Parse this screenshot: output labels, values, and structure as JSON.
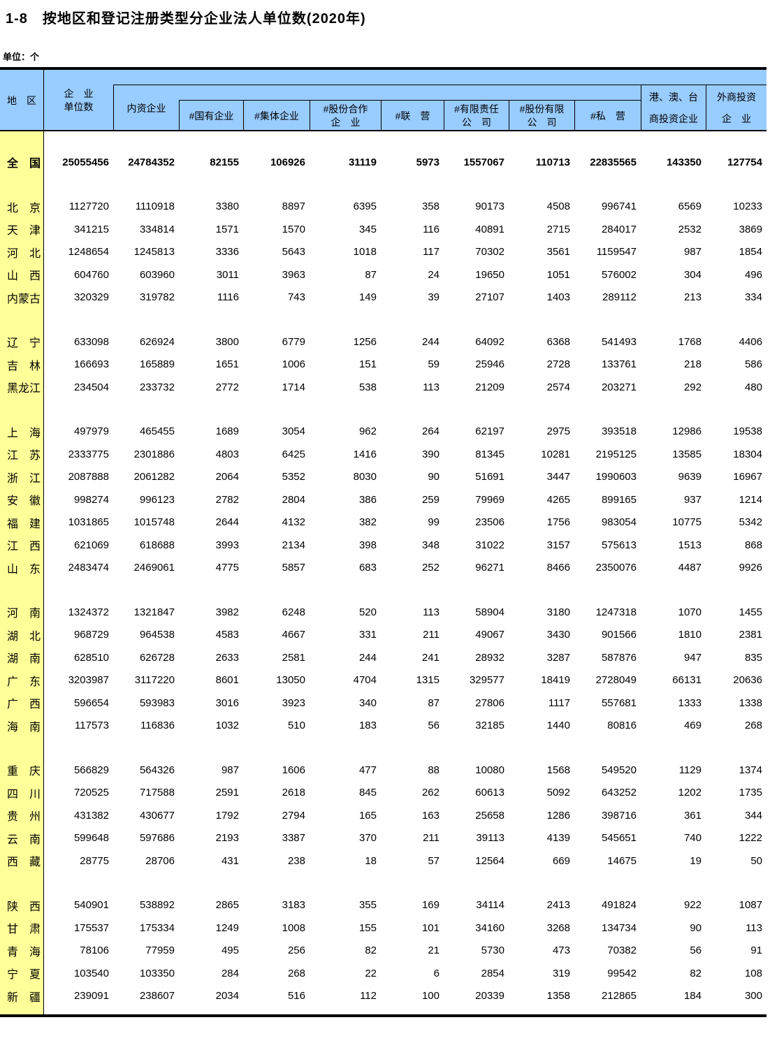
{
  "title": "1-8　按地区和登记注册类型分企业法人单位数(2020年)",
  "unit_note": "单位：个",
  "colors": {
    "header_bg": "#99CCFF",
    "region_col_bg": "#FFFF99",
    "border": "#000000"
  },
  "table": {
    "header": {
      "region": "地　区",
      "total_lines": [
        "企　业",
        "单位数"
      ],
      "domestic": "内资企业",
      "sub_columns": [
        {
          "lines": [
            "#国有企业"
          ]
        },
        {
          "lines": [
            "#集体企业"
          ]
        },
        {
          "lines": [
            "#股份合作",
            "企　业"
          ]
        },
        {
          "lines": [
            "#联　营"
          ]
        },
        {
          "lines": [
            "#有限责任",
            "公　司"
          ]
        },
        {
          "lines": [
            "#股份有限",
            "公　司"
          ]
        },
        {
          "lines": [
            "#私　营"
          ]
        }
      ],
      "hmt_lines": [
        "港、澳、台",
        "商投资企业"
      ],
      "foreign_lines": [
        "外商投资",
        "企　业"
      ]
    },
    "groups": [
      [
        {
          "region": "全　国",
          "bold": true,
          "values": [
            25055456,
            24784352,
            82155,
            106926,
            31119,
            5973,
            1557067,
            110713,
            22835565,
            143350,
            127754
          ]
        }
      ],
      [
        {
          "region": "北　京",
          "values": [
            1127720,
            1110918,
            3380,
            8897,
            6395,
            358,
            90173,
            4508,
            996741,
            6569,
            10233
          ]
        },
        {
          "region": "天　津",
          "values": [
            341215,
            334814,
            1571,
            1570,
            345,
            116,
            40891,
            2715,
            284017,
            2532,
            3869
          ]
        },
        {
          "region": "河　北",
          "values": [
            1248654,
            1245813,
            3336,
            5643,
            1018,
            117,
            70302,
            3561,
            1159547,
            987,
            1854
          ]
        },
        {
          "region": "山　西",
          "values": [
            604760,
            603960,
            3011,
            3963,
            87,
            24,
            19650,
            1051,
            576002,
            304,
            496
          ]
        },
        {
          "region": "内蒙古",
          "values": [
            320329,
            319782,
            1116,
            743,
            149,
            39,
            27107,
            1403,
            289112,
            213,
            334
          ]
        }
      ],
      [
        {
          "region": "辽　宁",
          "values": [
            633098,
            626924,
            3800,
            6779,
            1256,
            244,
            64092,
            6368,
            541493,
            1768,
            4406
          ]
        },
        {
          "region": "吉　林",
          "values": [
            166693,
            165889,
            1651,
            1006,
            151,
            59,
            25946,
            2728,
            133761,
            218,
            586
          ]
        },
        {
          "region": "黑龙江",
          "values": [
            234504,
            233732,
            2772,
            1714,
            538,
            113,
            21209,
            2574,
            203271,
            292,
            480
          ]
        }
      ],
      [
        {
          "region": "上　海",
          "values": [
            497979,
            465455,
            1689,
            3054,
            962,
            264,
            62197,
            2975,
            393518,
            12986,
            19538
          ]
        },
        {
          "region": "江　苏",
          "values": [
            2333775,
            2301886,
            4803,
            6425,
            1416,
            390,
            81345,
            10281,
            2195125,
            13585,
            18304
          ]
        },
        {
          "region": "浙　江",
          "values": [
            2087888,
            2061282,
            2064,
            5352,
            8030,
            90,
            51691,
            3447,
            1990603,
            9639,
            16967
          ]
        },
        {
          "region": "安　徽",
          "values": [
            998274,
            996123,
            2782,
            2804,
            386,
            259,
            79969,
            4265,
            899165,
            937,
            1214
          ]
        },
        {
          "region": "福　建",
          "values": [
            1031865,
            1015748,
            2644,
            4132,
            382,
            99,
            23506,
            1756,
            983054,
            10775,
            5342
          ]
        },
        {
          "region": "江　西",
          "values": [
            621069,
            618688,
            3993,
            2134,
            398,
            348,
            31022,
            3157,
            575613,
            1513,
            868
          ]
        },
        {
          "region": "山　东",
          "values": [
            2483474,
            2469061,
            4775,
            5857,
            683,
            252,
            96271,
            8466,
            2350076,
            4487,
            9926
          ]
        }
      ],
      [
        {
          "region": "河　南",
          "values": [
            1324372,
            1321847,
            3982,
            6248,
            520,
            113,
            58904,
            3180,
            1247318,
            1070,
            1455
          ]
        },
        {
          "region": "湖　北",
          "values": [
            968729,
            964538,
            4583,
            4667,
            331,
            211,
            49067,
            3430,
            901566,
            1810,
            2381
          ]
        },
        {
          "region": "湖　南",
          "values": [
            628510,
            626728,
            2633,
            2581,
            244,
            241,
            28932,
            3287,
            587876,
            947,
            835
          ]
        },
        {
          "region": "广　东",
          "values": [
            3203987,
            3117220,
            8601,
            13050,
            4704,
            1315,
            329577,
            18419,
            2728049,
            66131,
            20636
          ]
        },
        {
          "region": "广　西",
          "values": [
            596654,
            593983,
            3016,
            3923,
            340,
            87,
            27806,
            1117,
            557681,
            1333,
            1338
          ]
        },
        {
          "region": "海　南",
          "values": [
            117573,
            116836,
            1032,
            510,
            183,
            56,
            32185,
            1440,
            80816,
            469,
            268
          ]
        }
      ],
      [
        {
          "region": "重　庆",
          "values": [
            566829,
            564326,
            987,
            1606,
            477,
            88,
            10080,
            1568,
            549520,
            1129,
            1374
          ]
        },
        {
          "region": "四　川",
          "values": [
            720525,
            717588,
            2591,
            2618,
            845,
            262,
            60613,
            5092,
            643252,
            1202,
            1735
          ]
        },
        {
          "region": "贵　州",
          "values": [
            431382,
            430677,
            1792,
            2794,
            165,
            163,
            25658,
            1286,
            398716,
            361,
            344
          ]
        },
        {
          "region": "云　南",
          "values": [
            599648,
            597686,
            2193,
            3387,
            370,
            211,
            39113,
            4139,
            545651,
            740,
            1222
          ]
        },
        {
          "region": "西　藏",
          "values": [
            28775,
            28706,
            431,
            238,
            18,
            57,
            12564,
            669,
            14675,
            19,
            50
          ]
        }
      ],
      [
        {
          "region": "陕　西",
          "values": [
            540901,
            538892,
            2865,
            3183,
            355,
            169,
            34114,
            2413,
            491824,
            922,
            1087
          ]
        },
        {
          "region": "甘　肃",
          "values": [
            175537,
            175334,
            1249,
            1008,
            155,
            101,
            34160,
            3268,
            134734,
            90,
            113
          ]
        },
        {
          "region": "青　海",
          "values": [
            78106,
            77959,
            495,
            256,
            82,
            21,
            5730,
            473,
            70382,
            56,
            91
          ]
        },
        {
          "region": "宁　夏",
          "values": [
            103540,
            103350,
            284,
            268,
            22,
            6,
            2854,
            319,
            99542,
            82,
            108
          ]
        },
        {
          "region": "新　疆",
          "values": [
            239091,
            238607,
            2034,
            516,
            112,
            100,
            20339,
            1358,
            212865,
            184,
            300
          ]
        }
      ]
    ]
  }
}
